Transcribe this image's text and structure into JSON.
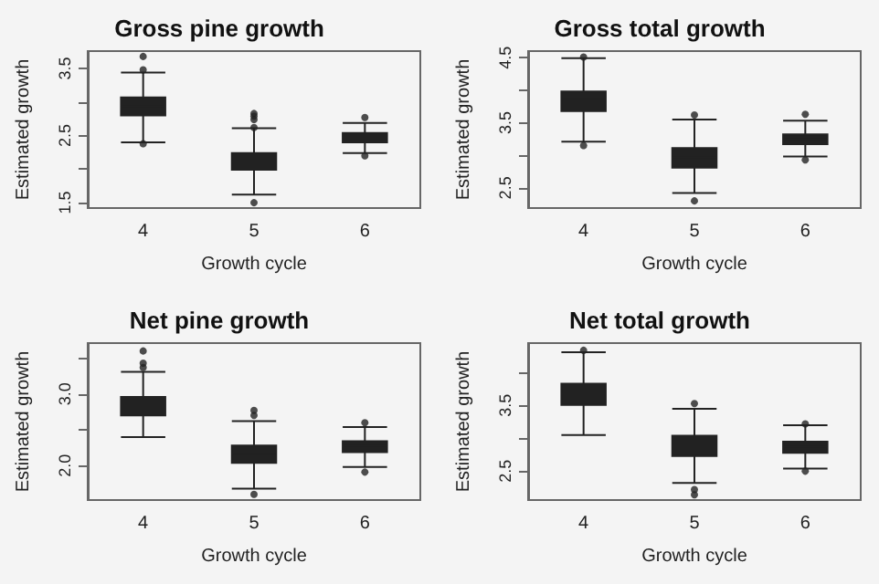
{
  "chart_data": [
    {
      "type": "box",
      "title": "Gross pine growth",
      "xlabel": "Growth cycle",
      "ylabel": "Estimated growth",
      "categories": [
        "4",
        "5",
        "6"
      ],
      "ylim": [
        1.42,
        3.76
      ],
      "yticks": [
        1.5,
        {
          "value": 2,
          "label": null
        },
        2.5,
        {
          "value": 3,
          "label": null
        },
        3.5
      ],
      "grid": false,
      "series": [
        {
          "color": "#222222",
          "boxes": [
            {
              "low": 2.4,
              "q1": 2.8,
              "median": 2.94,
              "q3": 3.07,
              "high": 3.44,
              "outliers": [
                3.68,
                3.48,
                2.38
              ]
            },
            {
              "low": 1.62,
              "q1": 1.99,
              "median": 2.12,
              "q3": 2.24,
              "high": 2.61,
              "outliers": [
                2.83,
                2.79,
                2.74,
                2.62,
                1.5
              ]
            },
            {
              "low": 2.24,
              "q1": 2.4,
              "median": 2.46,
              "q3": 2.54,
              "high": 2.69,
              "outliers": [
                2.77,
                2.2
              ]
            }
          ]
        }
      ]
    },
    {
      "type": "box",
      "title": "Gross total growth",
      "xlabel": "Growth cycle",
      "ylabel": "Estimated growth",
      "categories": [
        "4",
        "5",
        "6"
      ],
      "ylim": [
        2.19,
        4.6
      ],
      "yticks": [
        2.5,
        {
          "value": 3,
          "label": null
        },
        3.5,
        {
          "value": 4,
          "label": null
        },
        4.5
      ],
      "grid": false,
      "series": [
        {
          "color": "#222222",
          "boxes": [
            {
              "low": 3.21,
              "q1": 3.68,
              "median": 3.86,
              "q3": 3.98,
              "high": 4.49,
              "outliers": [
                4.51,
                3.15
              ]
            },
            {
              "low": 2.42,
              "q1": 2.81,
              "median": 2.97,
              "q3": 3.11,
              "high": 3.55,
              "outliers": [
                3.62,
                2.3
              ]
            },
            {
              "low": 2.98,
              "q1": 3.17,
              "median": 3.25,
              "q3": 3.32,
              "high": 3.53,
              "outliers": [
                3.63,
                2.93
              ]
            }
          ]
        }
      ]
    },
    {
      "type": "box",
      "title": "Net pine growth",
      "xlabel": "Growth cycle",
      "ylabel": "Estimated growth",
      "categories": [
        "4",
        "5",
        "6"
      ],
      "ylim": [
        1.52,
        3.71
      ],
      "yticks": [
        {
          "value": 2,
          "label": "2.0"
        },
        {
          "value": 2.5,
          "label": null
        },
        {
          "value": 3,
          "label": "3.0"
        },
        {
          "value": 3.5,
          "label": null
        }
      ],
      "grid": false,
      "series": [
        {
          "color": "#222222",
          "boxes": [
            {
              "low": 2.4,
              "q1": 2.7,
              "median": 2.83,
              "q3": 2.96,
              "high": 3.31,
              "outliers": [
                3.6,
                3.43,
                3.37
              ]
            },
            {
              "low": 1.68,
              "q1": 2.04,
              "median": 2.16,
              "q3": 2.28,
              "high": 2.62,
              "outliers": [
                2.77,
                2.7,
                1.6
              ]
            },
            {
              "low": 1.98,
              "q1": 2.19,
              "median": 2.28,
              "q3": 2.34,
              "high": 2.54,
              "outliers": [
                2.6,
                1.91
              ]
            }
          ]
        }
      ]
    },
    {
      "type": "box",
      "title": "Net total growth",
      "xlabel": "Growth cycle",
      "ylabel": "Estimated growth",
      "categories": [
        "4",
        "5",
        "6"
      ],
      "ylim": [
        2.06,
        4.45
      ],
      "yticks": [
        2.5,
        {
          "value": 3,
          "label": null
        },
        3.5,
        {
          "value": 4,
          "label": null
        }
      ],
      "grid": false,
      "series": [
        {
          "color": "#222222",
          "boxes": [
            {
              "low": 3.05,
              "q1": 3.51,
              "median": 3.68,
              "q3": 3.83,
              "high": 4.31,
              "outliers": [
                4.34
              ]
            },
            {
              "low": 2.32,
              "q1": 2.73,
              "median": 2.88,
              "q3": 3.04,
              "high": 3.45,
              "outliers": [
                3.53,
                2.22,
                2.14
              ]
            },
            {
              "low": 2.54,
              "q1": 2.78,
              "median": 2.87,
              "q3": 2.95,
              "high": 3.2,
              "outliers": [
                3.22,
                2.5
              ]
            }
          ]
        }
      ]
    }
  ]
}
